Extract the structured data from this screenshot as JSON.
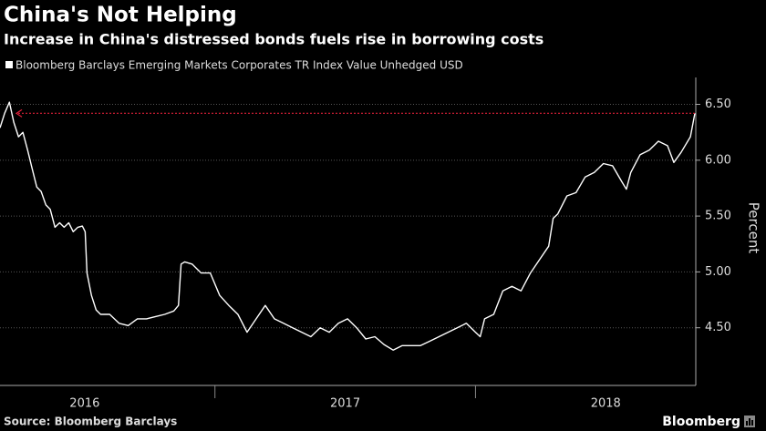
{
  "chart_data": {
    "type": "line",
    "title": "China's Not Helping",
    "subtitle": "Increase in China's distressed bonds fuels rise in borrowing costs",
    "y_axis_label": "Percent",
    "source": "Source: Bloomberg Barclays",
    "brand": "Bloomberg",
    "series": [
      {
        "name": "Bloomberg Barclays Emerging Markets Corporates TR Index Value Unhedged USD",
        "color": "#ffffff",
        "x": [
          2016.175,
          2016.193,
          2016.211,
          2016.228,
          2016.246,
          2016.263,
          2016.281,
          2016.298,
          2016.316,
          2016.333,
          2016.351,
          2016.368,
          2016.386,
          2016.404,
          2016.421,
          2016.439,
          2016.456,
          2016.474,
          2016.491,
          2016.502,
          2016.509,
          2016.526,
          2016.544,
          2016.561,
          2016.596,
          2016.632,
          2016.667,
          2016.702,
          2016.737,
          2016.772,
          2016.807,
          2016.842,
          2016.86,
          2016.87,
          2016.884,
          2016.912,
          2016.947,
          2016.982,
          2017.018,
          2017.053,
          2017.088,
          2017.123,
          2017.158,
          2017.193,
          2017.228,
          2017.263,
          2017.298,
          2017.333,
          2017.368,
          2017.404,
          2017.439,
          2017.474,
          2017.509,
          2017.544,
          2017.579,
          2017.614,
          2017.649,
          2017.684,
          2017.719,
          2017.754,
          2017.789,
          2017.825,
          2017.86,
          2017.895,
          2017.93,
          2017.965,
          2018.0,
          2018.018,
          2018.035,
          2018.07,
          2018.105,
          2018.14,
          2018.175,
          2018.211,
          2018.246,
          2018.281,
          2018.298,
          2018.316,
          2018.351,
          2018.386,
          2018.421,
          2018.456,
          2018.491,
          2018.526,
          2018.561,
          2018.579,
          2018.596,
          2018.632,
          2018.667,
          2018.702,
          2018.737,
          2018.761,
          2018.789,
          2018.825,
          2018.842
        ],
        "values": [
          6.29,
          6.42,
          6.52,
          6.34,
          6.21,
          6.25,
          6.09,
          5.93,
          5.76,
          5.72,
          5.6,
          5.56,
          5.4,
          5.44,
          5.4,
          5.44,
          5.36,
          5.4,
          5.41,
          5.36,
          4.99,
          4.79,
          4.66,
          4.62,
          4.62,
          4.54,
          4.52,
          4.58,
          4.58,
          4.6,
          4.62,
          4.65,
          4.7,
          5.07,
          5.09,
          5.07,
          4.99,
          4.99,
          4.79,
          4.7,
          4.62,
          4.46,
          4.58,
          4.7,
          4.58,
          4.54,
          4.5,
          4.46,
          4.42,
          4.5,
          4.46,
          4.54,
          4.58,
          4.5,
          4.4,
          4.42,
          4.35,
          4.3,
          4.34,
          4.34,
          4.34,
          4.38,
          4.42,
          4.46,
          4.5,
          4.54,
          4.46,
          4.42,
          4.58,
          4.62,
          4.83,
          4.87,
          4.83,
          4.99,
          5.11,
          5.23,
          5.48,
          5.52,
          5.68,
          5.71,
          5.85,
          5.89,
          5.97,
          5.95,
          5.81,
          5.74,
          5.89,
          6.05,
          6.09,
          6.17,
          6.13,
          5.98,
          6.07,
          6.21,
          6.42
        ]
      }
    ],
    "annotation_color": "#e0213a",
    "xlim": [
      2016.175,
      2018.842
    ],
    "x_separators": [
      2017,
      2018
    ],
    "xticks": [
      {
        "value": 2016.5,
        "label": "2016"
      },
      {
        "value": 2017.5,
        "label": "2017"
      },
      {
        "value": 2018.5,
        "label": "2018"
      }
    ],
    "ylim": [
      4.0,
      6.7
    ],
    "yticks": [
      {
        "value": 4.5,
        "label": "4.50"
      },
      {
        "value": 5.0,
        "label": "5.00"
      },
      {
        "value": 5.5,
        "label": "5.50"
      },
      {
        "value": 6.0,
        "label": "6.00"
      },
      {
        "value": 6.5,
        "label": "6.50"
      }
    ],
    "grid": true
  }
}
